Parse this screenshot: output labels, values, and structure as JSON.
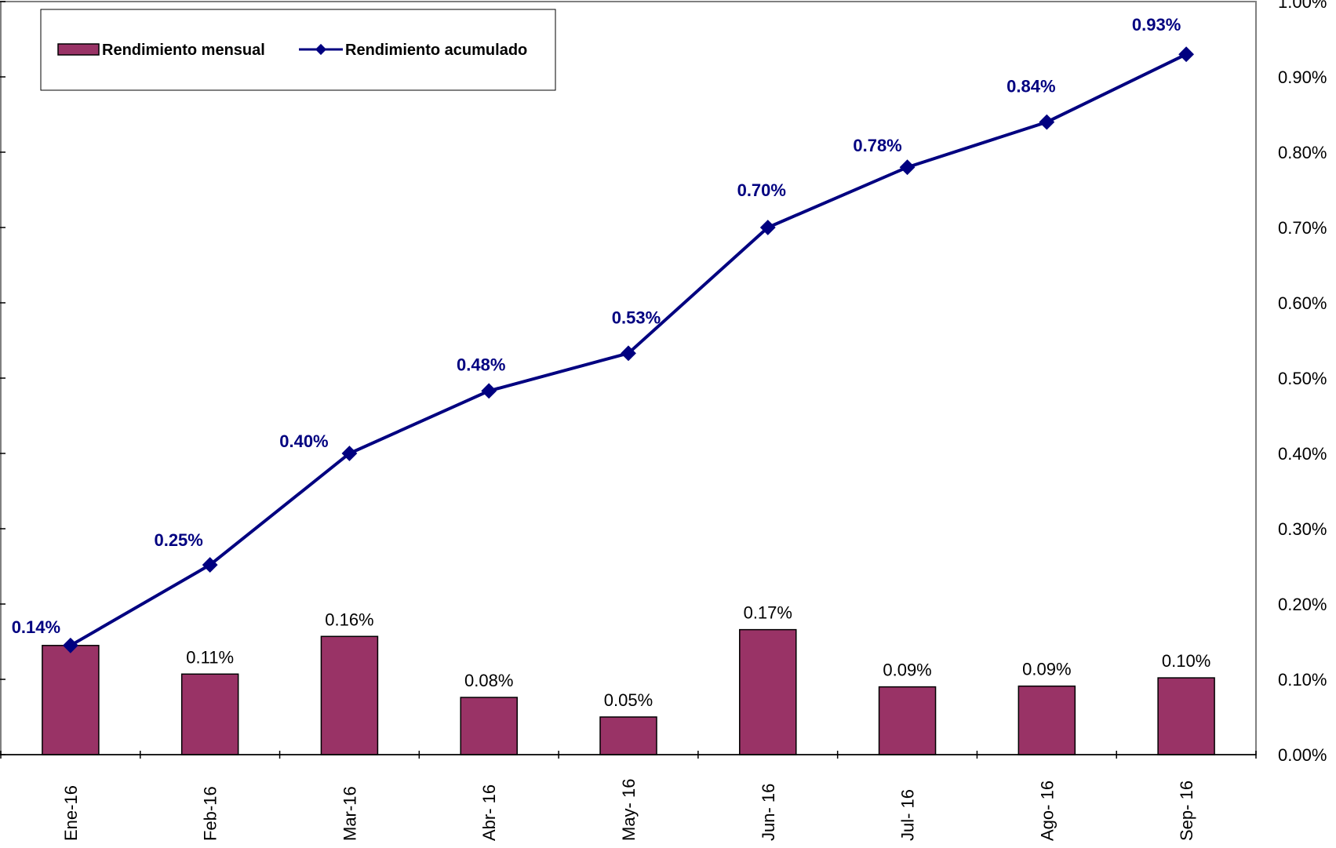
{
  "chart_data": {
    "type": "bar",
    "categories": [
      "Ene-16",
      "Feb-16",
      "Mar-16",
      "Abr- 16",
      "May- 16",
      "Jun- 16",
      "Jul- 16",
      "Ago- 16",
      "Sep- 16"
    ],
    "series": [
      {
        "name": "Rendimiento mensual",
        "type": "bar",
        "color": "#993366",
        "values": [
          0.145,
          0.107,
          0.157,
          0.076,
          0.05,
          0.166,
          0.09,
          0.091,
          0.102
        ],
        "labels": [
          "",
          "0.11%",
          "0.16%",
          "0.08%",
          "0.05%",
          "0.17%",
          "0.09%",
          "0.09%",
          "0.10%"
        ]
      },
      {
        "name": "Rendimiento acumulado",
        "type": "line",
        "color": "#000080",
        "values": [
          0.145,
          0.252,
          0.4,
          0.483,
          0.533,
          0.7,
          0.78,
          0.84,
          0.93
        ],
        "labels": [
          "0.14%",
          "0.25%",
          "0.40%",
          "0.48%",
          "0.53%",
          "0.70%",
          "0.78%",
          "0.84%",
          "0.93%"
        ]
      }
    ],
    "yaxis_right": {
      "min": 0,
      "max": 1.0,
      "step": 0.1,
      "tick_labels": [
        "0.00%",
        "0.10%",
        "0.20%",
        "0.30%",
        "0.40%",
        "0.50%",
        "0.60%",
        "0.70%",
        "0.80%",
        "0.90%",
        "1.00%"
      ]
    },
    "legend": {
      "placement": "top-left",
      "entries": [
        "Rendimiento mensual",
        "Rendimiento acumulado"
      ]
    },
    "grid": false
  }
}
